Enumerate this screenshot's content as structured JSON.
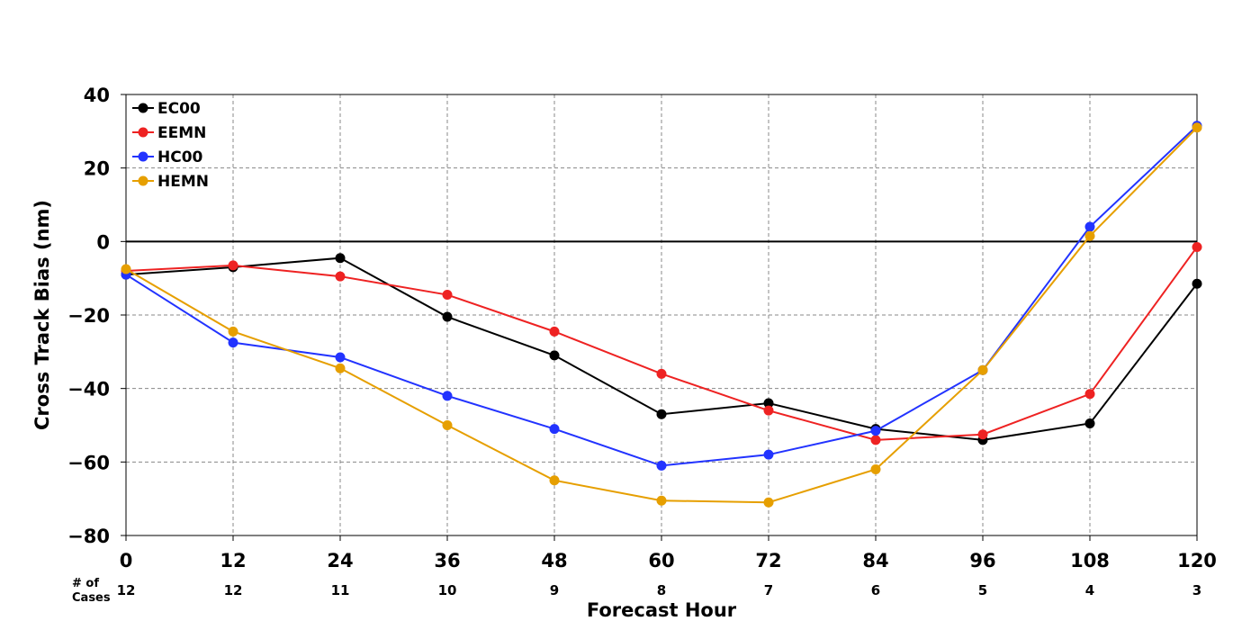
{
  "chart_data": {
    "type": "line",
    "xlabel": "Forecast Hour",
    "ylabel": "Cross Track Bias (nm)",
    "x": [
      0,
      12,
      24,
      36,
      48,
      60,
      72,
      84,
      96,
      108,
      120
    ],
    "xticks": [
      "0",
      "12",
      "24",
      "36",
      "48",
      "60",
      "72",
      "84",
      "96",
      "108",
      "120"
    ],
    "ylim": [
      -80,
      40
    ],
    "yticks": [
      "40",
      "20",
      "0",
      "−20",
      "−40",
      "−60",
      "−80"
    ],
    "ytick_values": [
      40,
      20,
      0,
      -20,
      -40,
      -60,
      -80
    ],
    "grid": true,
    "zero_line": true,
    "legend_position": "top-left",
    "cases_header_line1": "# of",
    "cases_header_line2": "Cases",
    "cases": [
      "12",
      "12",
      "11",
      "10",
      "9",
      "8",
      "7",
      "6",
      "5",
      "4",
      "3"
    ],
    "series": [
      {
        "name": "EC00",
        "color": "#000000",
        "values": [
          -9,
          -7,
          -4.5,
          -20.5,
          -31,
          -47,
          -44,
          -51,
          -54,
          -49.5,
          -11.5
        ]
      },
      {
        "name": "EEMN",
        "color": "#ee2222",
        "values": [
          -8,
          -6.5,
          -9.5,
          -14.5,
          -24.5,
          -36,
          -46,
          -54,
          -52.5,
          -41.5,
          -1.5
        ]
      },
      {
        "name": "HC00",
        "color": "#2233ff",
        "values": [
          -9,
          -27.5,
          -31.5,
          -42,
          -51,
          -61,
          -58,
          -51.5,
          -35,
          4,
          31.5
        ]
      },
      {
        "name": "HEMN",
        "color": "#e69f00",
        "values": [
          -7.5,
          -24.5,
          -34.5,
          -50,
          -65,
          -70.5,
          -71,
          -62,
          -35,
          1.5,
          31
        ]
      }
    ]
  }
}
